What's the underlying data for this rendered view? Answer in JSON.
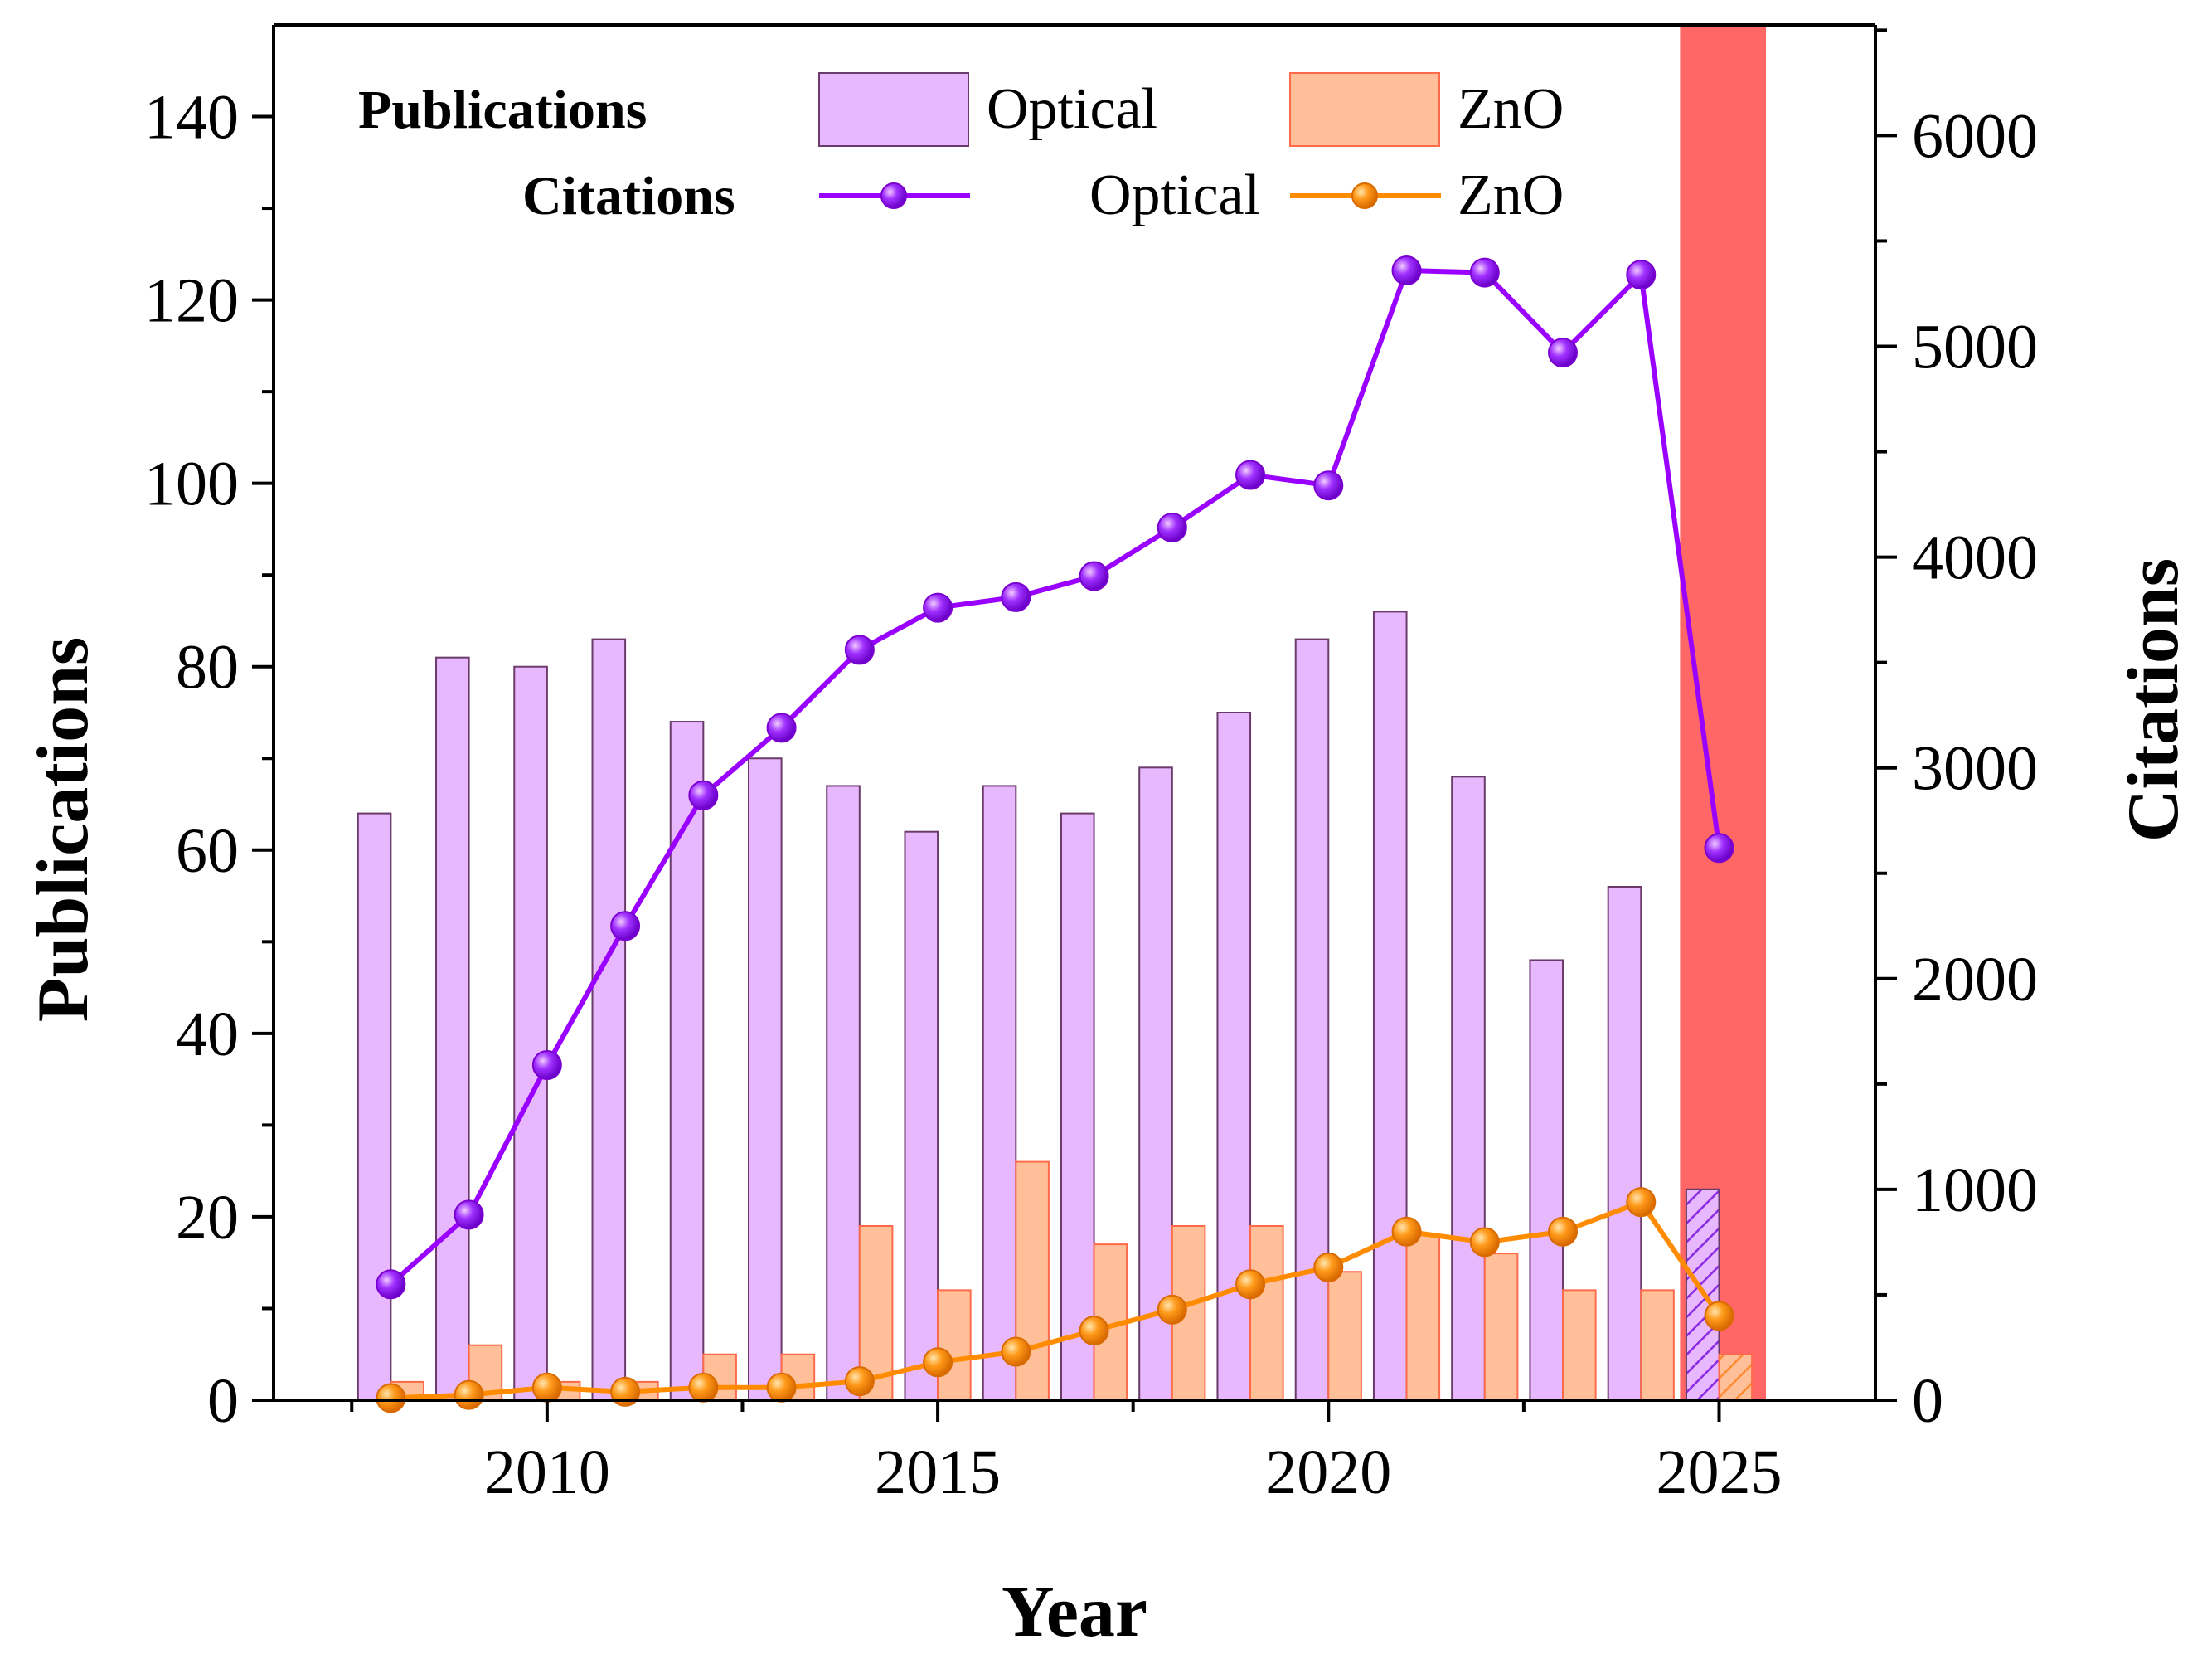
{
  "chart_data": {
    "type": "bar",
    "xlabel": "Year",
    "ylabel": "Publications",
    "y2label": "Citations",
    "xlim": [
      2006.5,
      2027
    ],
    "ylim": [
      0,
      150
    ],
    "y2lim": [
      0,
      6525
    ],
    "xticks": [
      2010,
      2015,
      2020,
      2025
    ],
    "xticks_major_all": [
      2010,
      2015,
      2020,
      2025
    ],
    "yticks": [
      0,
      20,
      40,
      60,
      80,
      100,
      120,
      140
    ],
    "y2ticks": [
      0,
      1000,
      2000,
      3000,
      4000,
      5000,
      6000
    ],
    "highlight": {
      "from": 2024.5,
      "to": 2025.6,
      "color": "#ff6666"
    },
    "legend": {
      "publications_header": "Publications",
      "citations_header": "Citations",
      "optical_label": "Optical",
      "zno_label": "ZnO",
      "optical_label_2": "Optical",
      "zno_label_2": "ZnO"
    },
    "x": [
      2008,
      2009,
      2010,
      2011,
      2012,
      2013,
      2014,
      2015,
      2016,
      2017,
      2018,
      2019,
      2020,
      2021,
      2022,
      2023,
      2024,
      2025
    ],
    "series": [
      {
        "name": "Optical",
        "kind": "bar",
        "axis": "left",
        "color": "#e8b8ff",
        "edge": "#6a3a6a",
        "values": [
          64,
          81,
          80,
          83,
          74,
          70,
          67,
          62,
          67,
          64,
          69,
          75,
          83,
          86,
          68,
          48,
          56,
          23
        ]
      },
      {
        "name": "ZnO",
        "kind": "bar",
        "axis": "left",
        "color": "#ffbf99",
        "edge": "#ff6a4a",
        "values": [
          2,
          6,
          2,
          2,
          5,
          5,
          19,
          12,
          26,
          17,
          19,
          19,
          14,
          18,
          16,
          12,
          12,
          5
        ]
      },
      {
        "name": "Optical",
        "kind": "line",
        "axis": "right",
        "color": "#9900ff",
        "values": [
          550,
          880,
          1590,
          2250,
          2870,
          3190,
          3560,
          3760,
          3810,
          3910,
          4140,
          4390,
          4340,
          5360,
          5350,
          4970,
          5340,
          2620
        ]
      },
      {
        "name": "ZnO",
        "kind": "line",
        "axis": "right",
        "color": "#ff8c00",
        "values": [
          10,
          25,
          60,
          40,
          60,
          60,
          90,
          180,
          230,
          330,
          430,
          550,
          630,
          800,
          750,
          800,
          940,
          400
        ]
      }
    ]
  }
}
